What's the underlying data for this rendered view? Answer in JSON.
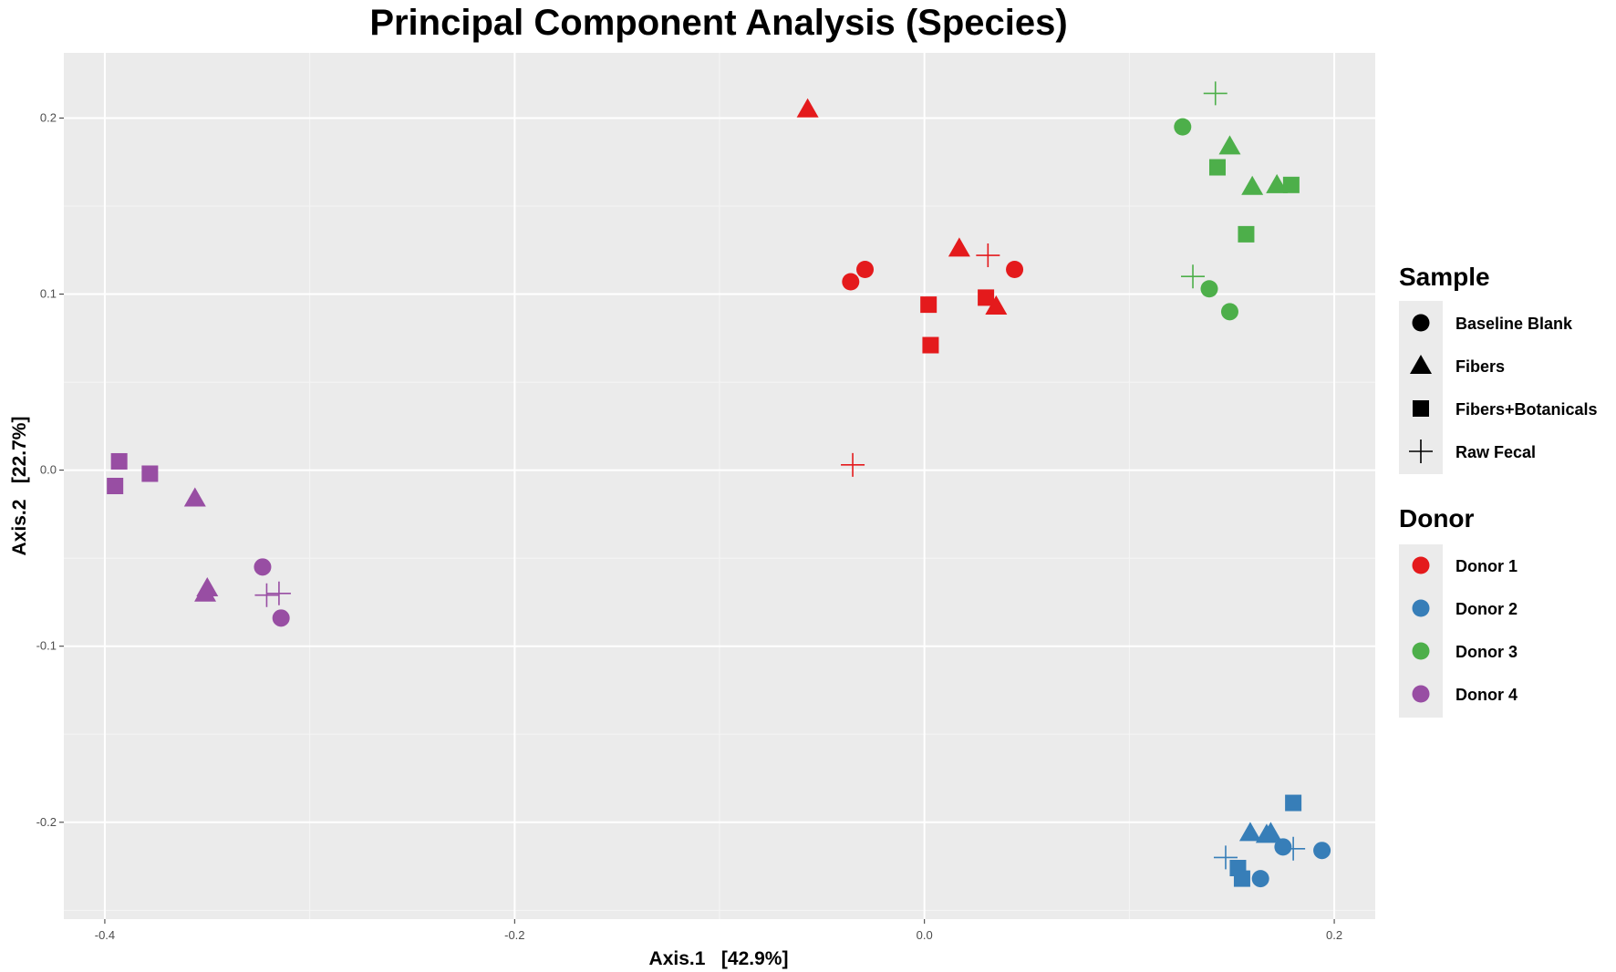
{
  "chart_data": {
    "type": "scatter",
    "title": "Principal Component Analysis (Species)",
    "xlabel": "Axis.1   [42.9%]",
    "ylabel": "Axis.2   [22.7%]",
    "xlim": [
      -0.42,
      0.22
    ],
    "ylim": [
      -0.255,
      0.237
    ],
    "x_ticks": [
      -0.4,
      -0.2,
      0.0,
      0.2
    ],
    "x_tick_labels": [
      "-0.4",
      "-0.2",
      "0.0",
      "0.2"
    ],
    "y_ticks": [
      -0.2,
      -0.1,
      0.0,
      0.1,
      0.2
    ],
    "y_tick_labels": [
      "-0.2",
      "-0.1",
      "0.0",
      "0.1",
      "0.2"
    ],
    "grid": true,
    "legend_position": "right",
    "legends": {
      "shape": {
        "title": "Sample",
        "entries": [
          {
            "label": "Baseline Blank",
            "shape": "circle"
          },
          {
            "label": "Fibers",
            "shape": "triangle"
          },
          {
            "label": "Fibers+Botanicals",
            "shape": "square"
          },
          {
            "label": "Raw Fecal",
            "shape": "plus"
          }
        ]
      },
      "color": {
        "title": "Donor",
        "entries": [
          {
            "label": "Donor 1",
            "color": "#E41A1C"
          },
          {
            "label": "Donor 2",
            "color": "#377EB8"
          },
          {
            "label": "Donor 3",
            "color": "#4DAF4A"
          },
          {
            "label": "Donor 4",
            "color": "#984EA3"
          }
        ]
      }
    },
    "series": [
      {
        "donor": "Donor 1",
        "sample": "Baseline Blank",
        "points": [
          [
            -0.036,
            0.107
          ],
          [
            -0.029,
            0.114
          ],
          [
            0.044,
            0.114
          ]
        ]
      },
      {
        "donor": "Donor 1",
        "sample": "Fibers",
        "points": [
          [
            -0.057,
            0.205
          ],
          [
            0.017,
            0.126
          ],
          [
            0.035,
            0.093
          ]
        ]
      },
      {
        "donor": "Donor 1",
        "sample": "Fibers+Botanicals",
        "points": [
          [
            0.002,
            0.094
          ],
          [
            0.03,
            0.098
          ],
          [
            0.003,
            0.071
          ]
        ]
      },
      {
        "donor": "Donor 1",
        "sample": "Raw Fecal",
        "points": [
          [
            0.031,
            0.122
          ],
          [
            -0.035,
            0.003
          ]
        ]
      },
      {
        "donor": "Donor 2",
        "sample": "Baseline Blank",
        "points": [
          [
            0.175,
            -0.214
          ],
          [
            0.194,
            -0.216
          ],
          [
            0.164,
            -0.232
          ]
        ]
      },
      {
        "donor": "Donor 2",
        "sample": "Fibers",
        "points": [
          [
            0.159,
            -0.206
          ],
          [
            0.167,
            -0.207
          ],
          [
            0.169,
            -0.206
          ]
        ]
      },
      {
        "donor": "Donor 2",
        "sample": "Fibers+Botanicals",
        "points": [
          [
            0.18,
            -0.189
          ],
          [
            0.153,
            -0.226
          ],
          [
            0.155,
            -0.232
          ]
        ]
      },
      {
        "donor": "Donor 2",
        "sample": "Raw Fecal",
        "points": [
          [
            0.147,
            -0.22
          ],
          [
            0.18,
            -0.215
          ]
        ]
      },
      {
        "donor": "Donor 3",
        "sample": "Baseline Blank",
        "points": [
          [
            0.126,
            0.195
          ],
          [
            0.139,
            0.103
          ],
          [
            0.149,
            0.09
          ]
        ]
      },
      {
        "donor": "Donor 3",
        "sample": "Fibers",
        "points": [
          [
            0.149,
            0.184
          ],
          [
            0.16,
            0.161
          ],
          [
            0.172,
            0.162
          ]
        ]
      },
      {
        "donor": "Donor 3",
        "sample": "Fibers+Botanicals",
        "points": [
          [
            0.143,
            0.172
          ],
          [
            0.157,
            0.134
          ],
          [
            0.179,
            0.162
          ]
        ]
      },
      {
        "donor": "Donor 3",
        "sample": "Raw Fecal",
        "points": [
          [
            0.142,
            0.214
          ],
          [
            0.131,
            0.11
          ]
        ]
      },
      {
        "donor": "Donor 4",
        "sample": "Baseline Blank",
        "points": [
          [
            -0.323,
            -0.055
          ],
          [
            -0.314,
            -0.084
          ]
        ]
      },
      {
        "donor": "Donor 4",
        "sample": "Fibers",
        "points": [
          [
            -0.356,
            -0.016
          ],
          [
            -0.35,
            -0.067
          ],
          [
            -0.351,
            -0.07
          ]
        ]
      },
      {
        "donor": "Donor 4",
        "sample": "Fibers+Botanicals",
        "points": [
          [
            -0.393,
            0.005
          ],
          [
            -0.395,
            -0.009
          ],
          [
            -0.378,
            -0.002
          ]
        ]
      },
      {
        "donor": "Donor 4",
        "sample": "Raw Fecal",
        "points": [
          [
            -0.321,
            -0.071
          ],
          [
            -0.315,
            -0.07
          ]
        ]
      }
    ]
  }
}
